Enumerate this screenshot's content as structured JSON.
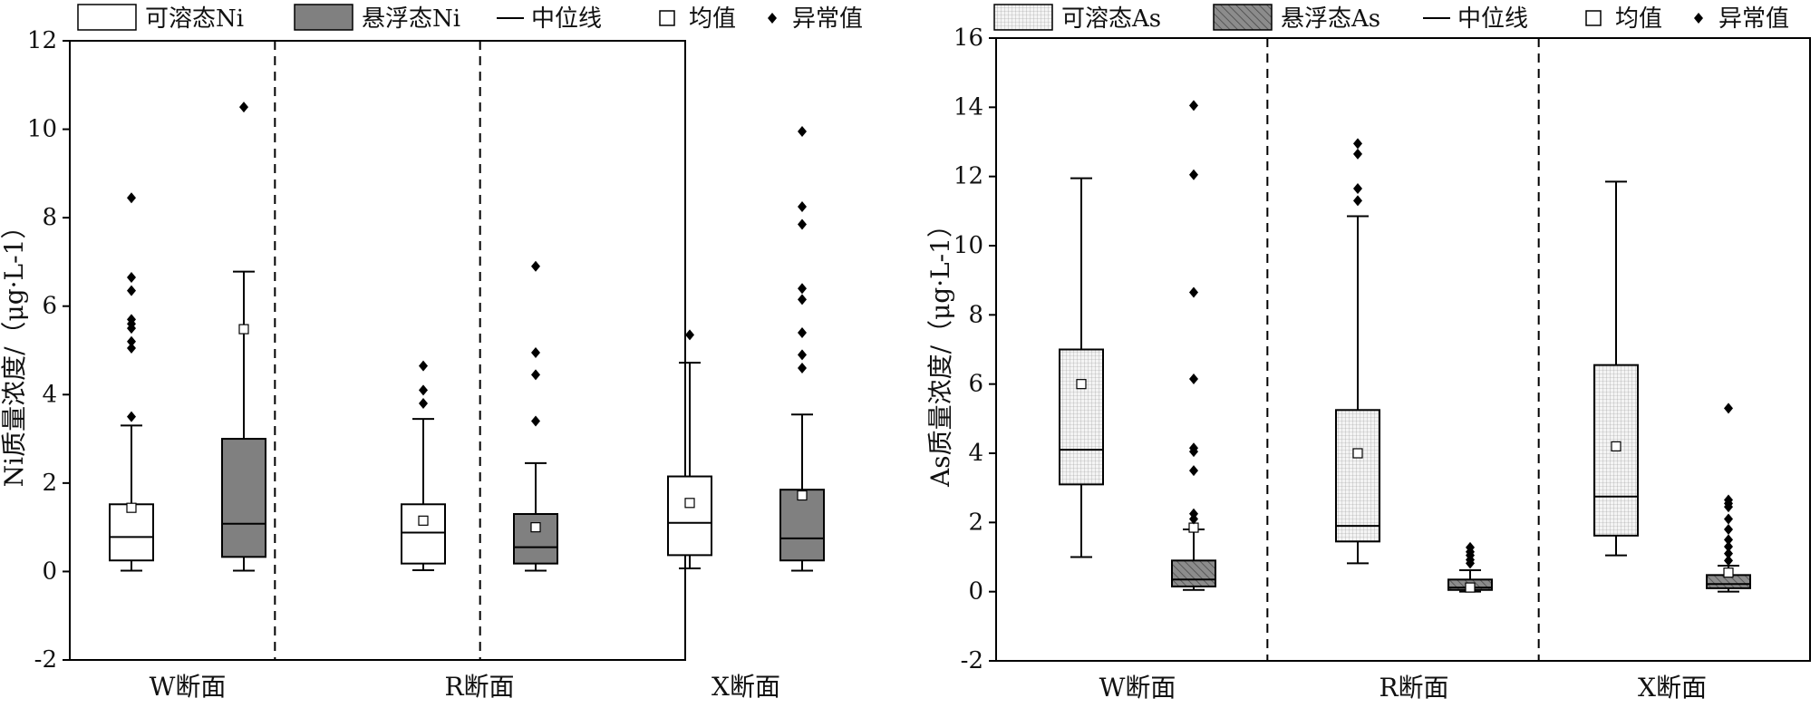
{
  "chart_data": [
    {
      "type": "box",
      "ylabel": "Ni质量浓度/（μg·L-1）",
      "ylim": [
        -2,
        12
      ],
      "yticks": [
        -2,
        0,
        2,
        4,
        6,
        8,
        10,
        12
      ],
      "categories": [
        "W断面",
        "R断面",
        "X断面"
      ],
      "grid": false,
      "legend_position": "top",
      "legend": {
        "soluble": "可溶态Ni",
        "suspended": "悬浮态Ni",
        "median": "中位线",
        "mean": "均值",
        "outlier": "异常值"
      },
      "series": [
        {
          "name": "可溶态Ni",
          "fill": "#ffffff",
          "pattern": "plain-white",
          "boxes": [
            {
              "category": "W断面",
              "min": 0.02,
              "q1": 0.25,
              "median": 0.78,
              "q3": 1.52,
              "max": 3.3,
              "mean": 1.44,
              "outliers": [
                3.5,
                5.05,
                5.2,
                5.5,
                5.6,
                5.7,
                6.35,
                6.65,
                8.45
              ]
            },
            {
              "category": "R断面",
              "min": 0.03,
              "q1": 0.18,
              "median": 0.88,
              "q3": 1.52,
              "max": 3.45,
              "mean": 1.15,
              "outliers": [
                3.8,
                4.1,
                4.65
              ]
            },
            {
              "category": "X断面",
              "min": 0.07,
              "q1": 0.37,
              "median": 1.1,
              "q3": 2.15,
              "max": 4.72,
              "mean": 1.55,
              "outliers": [
                5.35
              ]
            }
          ]
        },
        {
          "name": "悬浮态Ni",
          "fill": "#808080",
          "pattern": "solid-grey",
          "boxes": [
            {
              "category": "W断面",
              "min": 0.02,
              "q1": 0.33,
              "median": 1.08,
              "q3": 3.0,
              "max": 6.78,
              "mean": 5.48,
              "outliers": [
                10.5
              ]
            },
            {
              "category": "R断面",
              "min": 0.02,
              "q1": 0.18,
              "median": 0.55,
              "q3": 1.3,
              "max": 2.45,
              "mean": 1.0,
              "outliers": [
                3.4,
                4.45,
                4.95,
                6.9
              ]
            },
            {
              "category": "X断面",
              "min": 0.02,
              "q1": 0.25,
              "median": 0.75,
              "q3": 1.85,
              "max": 3.55,
              "mean": 1.72,
              "outliers": [
                4.6,
                4.9,
                5.4,
                6.15,
                6.4,
                7.85,
                8.25,
                9.95
              ]
            }
          ]
        }
      ]
    },
    {
      "type": "box",
      "ylabel": "As质量浓度/（μg·L-1）",
      "ylim": [
        -2,
        16
      ],
      "yticks": [
        -2,
        0,
        2,
        4,
        6,
        8,
        10,
        12,
        14,
        16
      ],
      "categories": [
        "W断面",
        "R断面",
        "X断面"
      ],
      "grid": false,
      "legend_position": "top",
      "legend": {
        "soluble": "可溶态As",
        "suspended": "悬浮态As",
        "median": "中位线",
        "mean": "均值",
        "outlier": "异常值"
      },
      "series": [
        {
          "name": "可溶态As",
          "fill": "#f2f2f2",
          "pattern": "fine-grid",
          "boxes": [
            {
              "category": "W断面",
              "min": 1.0,
              "q1": 3.1,
              "median": 4.1,
              "q3": 7.0,
              "max": 11.95,
              "mean": 6.0,
              "outliers": []
            },
            {
              "category": "R断面",
              "min": 0.82,
              "q1": 1.45,
              "median": 1.9,
              "q3": 5.25,
              "max": 10.85,
              "mean": 4.0,
              "outliers": [
                11.3,
                11.65,
                12.65,
                12.95
              ]
            },
            {
              "category": "X断面",
              "min": 1.05,
              "q1": 1.62,
              "median": 2.75,
              "q3": 6.55,
              "max": 11.85,
              "mean": 4.2,
              "outliers": []
            }
          ]
        },
        {
          "name": "悬浮态As",
          "fill": "#8c8c8c",
          "pattern": "diagonal-hatch",
          "boxes": [
            {
              "category": "W断面",
              "min": 0.05,
              "q1": 0.15,
              "median": 0.35,
              "q3": 0.9,
              "max": 1.8,
              "mean": 1.85,
              "outliers": [
                2.1,
                2.25,
                3.5,
                4.05,
                4.15,
                6.15,
                8.65,
                12.05,
                14.05
              ]
            },
            {
              "category": "R断面",
              "min": 0.0,
              "q1": 0.05,
              "median": 0.12,
              "q3": 0.35,
              "max": 0.62,
              "mean": 0.12,
              "outliers": [
                0.82,
                0.92,
                1.05,
                1.15,
                1.28
              ]
            },
            {
              "category": "X断面",
              "min": 0.0,
              "q1": 0.1,
              "median": 0.22,
              "q3": 0.48,
              "max": 0.75,
              "mean": 0.55,
              "outliers": [
                0.9,
                1.1,
                1.3,
                1.5,
                1.8,
                2.1,
                2.45,
                2.55,
                2.65,
                5.3
              ]
            }
          ]
        }
      ]
    }
  ]
}
